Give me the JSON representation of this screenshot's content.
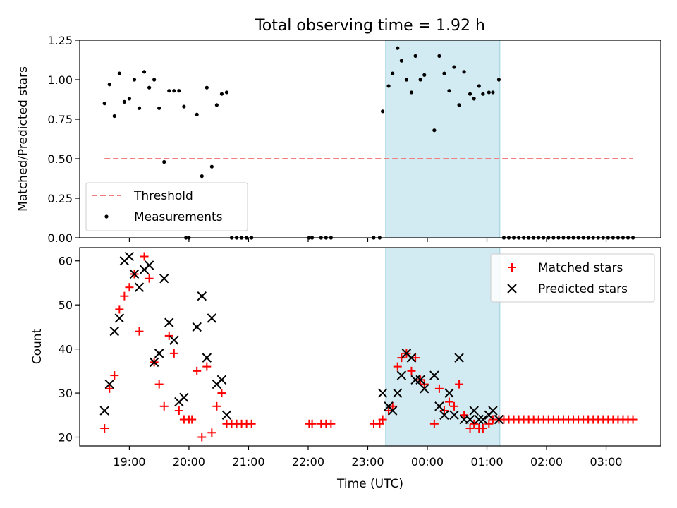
{
  "figure": {
    "title": "Total observing time = 1.92 h",
    "xlabel": "Time (UTC)"
  },
  "colors": {
    "threshold": "#f08080",
    "highlight": "#add8e6",
    "matched": "#ff0000",
    "predicted": "#000000"
  },
  "chart_data": [
    {
      "type": "scatter",
      "ylabel": "Matched/Predicted stars",
      "ylim": [
        0,
        1.25
      ],
      "xlim": [
        "18:10",
        "03:55"
      ],
      "yticks": [
        "0.00",
        "0.25",
        "0.50",
        "0.75",
        "1.00",
        "1.25"
      ],
      "xticks": [
        "19:00",
        "20:00",
        "21:00",
        "22:00",
        "23:00",
        "00:00",
        "01:00",
        "02:00",
        "03:00"
      ],
      "xtick_labels_visible": false,
      "highlight_span": [
        "23:18",
        "01:13"
      ],
      "legend": {
        "placement": "lower-left",
        "entries": [
          "Threshold",
          "Measurements"
        ]
      },
      "threshold": {
        "name": "Threshold",
        "y": 0.5,
        "x": [
          "18:35",
          "03:27"
        ]
      },
      "series": [
        {
          "name": "Measurements",
          "points": [
            [
              "18:35",
              0.85
            ],
            [
              "18:40",
              0.97
            ],
            [
              "18:45",
              0.77
            ],
            [
              "18:50",
              1.04
            ],
            [
              "18:55",
              0.86
            ],
            [
              "19:00",
              0.88
            ],
            [
              "19:05",
              1.0
            ],
            [
              "19:10",
              0.82
            ],
            [
              "19:15",
              1.05
            ],
            [
              "19:20",
              0.95
            ],
            [
              "19:25",
              1.0
            ],
            [
              "19:30",
              0.82
            ],
            [
              "19:35",
              0.48
            ],
            [
              "19:40",
              0.93
            ],
            [
              "19:45",
              0.93
            ],
            [
              "19:50",
              0.93
            ],
            [
              "19:55",
              0.83
            ],
            [
              "19:57",
              0.0
            ],
            [
              "20:00",
              0.0
            ],
            [
              "20:08",
              0.78
            ],
            [
              "20:13",
              0.39
            ],
            [
              "20:18",
              0.95
            ],
            [
              "20:23",
              0.45
            ],
            [
              "20:28",
              0.84
            ],
            [
              "20:33",
              0.91
            ],
            [
              "20:38",
              0.92
            ],
            [
              "20:43",
              0.0
            ],
            [
              "20:48",
              0.0
            ],
            [
              "20:53",
              0.0
            ],
            [
              "20:58",
              0.0
            ],
            [
              "21:03",
              0.0
            ],
            [
              "22:01",
              0.0
            ],
            [
              "22:04",
              0.0
            ],
            [
              "22:13",
              0.0
            ],
            [
              "22:18",
              0.0
            ],
            [
              "22:23",
              0.0
            ],
            [
              "23:06",
              0.0
            ],
            [
              "23:12",
              0.0
            ],
            [
              "23:15",
              0.8
            ],
            [
              "23:21",
              0.96
            ],
            [
              "23:25",
              1.04
            ],
            [
              "23:30",
              1.2
            ],
            [
              "23:34",
              1.12
            ],
            [
              "23:39",
              1.0
            ],
            [
              "23:44",
              0.92
            ],
            [
              "23:48",
              1.15
            ],
            [
              "23:53",
              1.0
            ],
            [
              "23:57",
              1.03
            ],
            [
              "00:07",
              0.68
            ],
            [
              "00:12",
              1.15
            ],
            [
              "00:17",
              1.04
            ],
            [
              "00:22",
              0.93
            ],
            [
              "00:27",
              1.08
            ],
            [
              "00:32",
              0.84
            ],
            [
              "00:37",
              1.05
            ],
            [
              "00:43",
              0.91
            ],
            [
              "00:47",
              0.88
            ],
            [
              "00:52",
              0.96
            ],
            [
              "00:56",
              0.91
            ],
            [
              "01:02",
              0.92
            ],
            [
              "01:06",
              0.92
            ],
            [
              "01:12",
              1.0
            ],
            [
              "01:17",
              0.0
            ],
            [
              "01:22",
              0.0
            ],
            [
              "01:27",
              0.0
            ],
            [
              "01:32",
              0.0
            ],
            [
              "01:37",
              0.0
            ],
            [
              "01:42",
              0.0
            ],
            [
              "01:47",
              0.0
            ],
            [
              "01:52",
              0.0
            ],
            [
              "01:57",
              0.0
            ],
            [
              "02:02",
              0.0
            ],
            [
              "02:07",
              0.0
            ],
            [
              "02:12",
              0.0
            ],
            [
              "02:17",
              0.0
            ],
            [
              "02:22",
              0.0
            ],
            [
              "02:27",
              0.0
            ],
            [
              "02:32",
              0.0
            ],
            [
              "02:37",
              0.0
            ],
            [
              "02:42",
              0.0
            ],
            [
              "02:47",
              0.0
            ],
            [
              "02:52",
              0.0
            ],
            [
              "02:57",
              0.0
            ],
            [
              "03:02",
              0.0
            ],
            [
              "03:07",
              0.0
            ],
            [
              "03:12",
              0.0
            ],
            [
              "03:17",
              0.0
            ],
            [
              "03:22",
              0.0
            ],
            [
              "03:27",
              0.0
            ]
          ]
        }
      ]
    },
    {
      "type": "scatter",
      "ylabel": "Count",
      "ylim": [
        18,
        63
      ],
      "xlim": [
        "18:10",
        "03:55"
      ],
      "yticks": [
        "20",
        "30",
        "40",
        "50",
        "60"
      ],
      "xticks": [
        "19:00",
        "20:00",
        "21:00",
        "22:00",
        "23:00",
        "00:00",
        "01:00",
        "02:00",
        "03:00"
      ],
      "highlight_span": [
        "23:18",
        "01:13"
      ],
      "legend": {
        "placement": "upper-right",
        "entries": [
          "Matched stars",
          "Predicted stars"
        ]
      },
      "series": [
        {
          "name": "Matched stars",
          "marker": "plus",
          "points": [
            [
              "18:35",
              22
            ],
            [
              "18:40",
              31
            ],
            [
              "18:45",
              34
            ],
            [
              "18:50",
              49
            ],
            [
              "18:55",
              52
            ],
            [
              "19:00",
              54
            ],
            [
              "19:05",
              57
            ],
            [
              "19:10",
              44
            ],
            [
              "19:15",
              61
            ],
            [
              "19:20",
              56
            ],
            [
              "19:25",
              37
            ],
            [
              "19:30",
              32
            ],
            [
              "19:35",
              27
            ],
            [
              "19:40",
              43
            ],
            [
              "19:45",
              39
            ],
            [
              "19:50",
              26
            ],
            [
              "19:55",
              24
            ],
            [
              "20:00",
              24
            ],
            [
              "20:03",
              24
            ],
            [
              "20:08",
              35
            ],
            [
              "20:13",
              20
            ],
            [
              "20:18",
              36
            ],
            [
              "20:23",
              21
            ],
            [
              "20:28",
              27
            ],
            [
              "20:33",
              30
            ],
            [
              "20:38",
              23
            ],
            [
              "20:43",
              23
            ],
            [
              "20:48",
              23
            ],
            [
              "20:53",
              23
            ],
            [
              "20:58",
              23
            ],
            [
              "21:03",
              23
            ],
            [
              "22:01",
              23
            ],
            [
              "22:04",
              23
            ],
            [
              "22:13",
              23
            ],
            [
              "22:18",
              23
            ],
            [
              "22:23",
              23
            ],
            [
              "23:06",
              23
            ],
            [
              "23:12",
              23
            ],
            [
              "23:15",
              24
            ],
            [
              "23:21",
              26
            ],
            [
              "23:25",
              27
            ],
            [
              "23:30",
              36
            ],
            [
              "23:34",
              38
            ],
            [
              "23:39",
              39
            ],
            [
              "23:44",
              35
            ],
            [
              "23:48",
              38
            ],
            [
              "23:53",
              33
            ],
            [
              "23:57",
              32
            ],
            [
              "00:07",
              23
            ],
            [
              "00:12",
              31
            ],
            [
              "00:17",
              26
            ],
            [
              "00:22",
              28
            ],
            [
              "00:27",
              27
            ],
            [
              "00:32",
              32
            ],
            [
              "00:37",
              25
            ],
            [
              "00:43",
              22
            ],
            [
              "00:47",
              23
            ],
            [
              "00:52",
              22
            ],
            [
              "00:56",
              22
            ],
            [
              "01:02",
              23
            ],
            [
              "01:06",
              24
            ],
            [
              "01:12",
              24
            ],
            [
              "01:17",
              24
            ],
            [
              "01:22",
              24
            ],
            [
              "01:27",
              24
            ],
            [
              "01:32",
              24
            ],
            [
              "01:37",
              24
            ],
            [
              "01:42",
              24
            ],
            [
              "01:47",
              24
            ],
            [
              "01:52",
              24
            ],
            [
              "01:57",
              24
            ],
            [
              "02:02",
              24
            ],
            [
              "02:07",
              24
            ],
            [
              "02:12",
              24
            ],
            [
              "02:17",
              24
            ],
            [
              "02:22",
              24
            ],
            [
              "02:27",
              24
            ],
            [
              "02:32",
              24
            ],
            [
              "02:37",
              24
            ],
            [
              "02:42",
              24
            ],
            [
              "02:47",
              24
            ],
            [
              "02:52",
              24
            ],
            [
              "02:57",
              24
            ],
            [
              "03:02",
              24
            ],
            [
              "03:07",
              24
            ],
            [
              "03:12",
              24
            ],
            [
              "03:17",
              24
            ],
            [
              "03:22",
              24
            ],
            [
              "03:27",
              24
            ]
          ]
        },
        {
          "name": "Predicted stars",
          "marker": "x",
          "points": [
            [
              "18:35",
              26
            ],
            [
              "18:40",
              32
            ],
            [
              "18:45",
              44
            ],
            [
              "18:50",
              47
            ],
            [
              "18:55",
              60
            ],
            [
              "19:00",
              61
            ],
            [
              "19:05",
              57
            ],
            [
              "19:10",
              54
            ],
            [
              "19:15",
              58
            ],
            [
              "19:20",
              59
            ],
            [
              "19:25",
              37
            ],
            [
              "19:30",
              39
            ],
            [
              "19:35",
              56
            ],
            [
              "19:40",
              46
            ],
            [
              "19:45",
              42
            ],
            [
              "19:50",
              28
            ],
            [
              "19:55",
              29
            ],
            [
              "20:08",
              45
            ],
            [
              "20:13",
              52
            ],
            [
              "20:18",
              38
            ],
            [
              "20:23",
              47
            ],
            [
              "20:28",
              32
            ],
            [
              "20:33",
              33
            ],
            [
              "20:38",
              25
            ],
            [
              "23:15",
              30
            ],
            [
              "23:21",
              27
            ],
            [
              "23:25",
              26
            ],
            [
              "23:30",
              30
            ],
            [
              "23:34",
              34
            ],
            [
              "23:39",
              39
            ],
            [
              "23:44",
              38
            ],
            [
              "23:48",
              33
            ],
            [
              "23:53",
              33
            ],
            [
              "23:57",
              31
            ],
            [
              "00:07",
              34
            ],
            [
              "00:12",
              27
            ],
            [
              "00:17",
              25
            ],
            [
              "00:22",
              30
            ],
            [
              "00:27",
              25
            ],
            [
              "00:32",
              38
            ],
            [
              "00:37",
              24
            ],
            [
              "00:43",
              24
            ],
            [
              "00:47",
              26
            ],
            [
              "00:52",
              24
            ],
            [
              "00:56",
              24
            ],
            [
              "01:02",
              25
            ],
            [
              "01:06",
              26
            ],
            [
              "01:12",
              24
            ]
          ]
        }
      ]
    }
  ]
}
